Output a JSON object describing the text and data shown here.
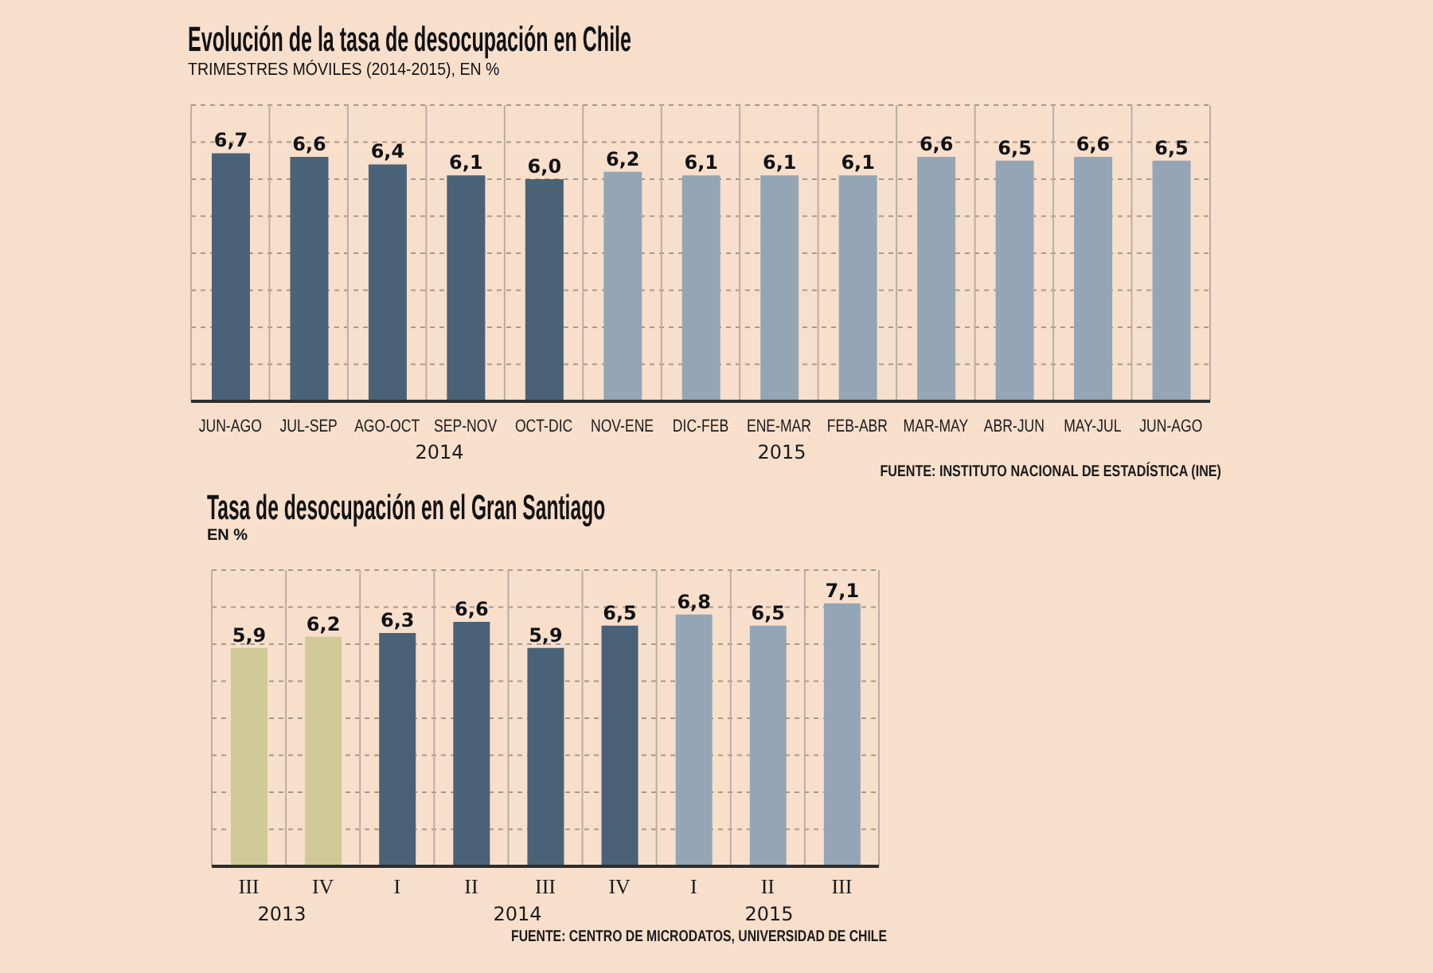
{
  "chart_data": [
    {
      "type": "bar",
      "title": "Evolución de la tasa de desocupación en Chile",
      "subtitle": "TRIMESTRES MÓVILES (2014-2015), EN %",
      "categories": [
        "JUN-AGO",
        "JUL-SEP",
        "AGO-OCT",
        "SEP-NOV",
        "OCT-DIC",
        "NOV-ENE",
        "DIC-FEB",
        "ENE-MAR",
        "FEB-ABR",
        "MAR-MAY",
        "ABR-JUN",
        "MAY-JUL",
        "JUN-AGO"
      ],
      "values": [
        6.7,
        6.6,
        6.4,
        6.1,
        6.0,
        6.2,
        6.1,
        6.1,
        6.1,
        6.6,
        6.5,
        6.6,
        6.5
      ],
      "value_labels": [
        "6,7",
        "6,6",
        "6,4",
        "6,1",
        "6,0",
        "6,2",
        "6,1",
        "6,1",
        "6,1",
        "6,6",
        "6,5",
        "6,6",
        "6,5"
      ],
      "colors": [
        "#4a6277",
        "#4a6277",
        "#4a6277",
        "#4a6277",
        "#4a6277",
        "#94a6b5",
        "#94a6b5",
        "#94a6b5",
        "#94a6b5",
        "#94a6b5",
        "#94a6b5",
        "#94a6b5",
        "#94a6b5"
      ],
      "ylim": [
        0,
        8
      ],
      "grid": true,
      "tick_labels": "x",
      "annotations": [
        "2014",
        "2015",
        "FUENTE: INSTITUTO NACIONAL DE ESTADÍSTICA (INE)"
      ]
    },
    {
      "type": "bar",
      "title": "Tasa de desocupación en el Gran Santiago",
      "subtitle": "EN %",
      "categories": [
        "III",
        "IV",
        "I",
        "II",
        "III",
        "IV",
        "I",
        "II",
        "III"
      ],
      "values": [
        5.9,
        6.2,
        6.3,
        6.6,
        5.9,
        6.5,
        6.8,
        6.5,
        7.1
      ],
      "value_labels": [
        "5,9",
        "6,2",
        "6,3",
        "6,6",
        "5,9",
        "6,5",
        "6,8",
        "6,5",
        "7,1"
      ],
      "colors": [
        "#cfca98",
        "#cfca98",
        "#4a6277",
        "#4a6277",
        "#4a6277",
        "#4a6277",
        "#94a6b5",
        "#94a6b5",
        "#94a6b5"
      ],
      "ylim": [
        0,
        8
      ],
      "grid": true,
      "tick_labels": "x",
      "annotations": [
        "2013",
        "2014",
        "2015",
        "FUENTE: CENTRO DE MICRODATOS, UNIVERSIDAD DE CHILE"
      ]
    }
  ]
}
